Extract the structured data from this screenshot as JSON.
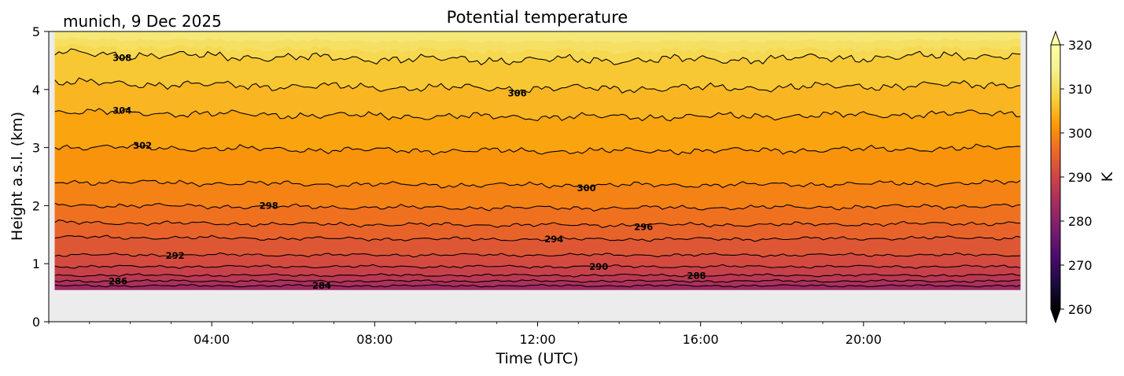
{
  "chart_data": {
    "type": "heatmap",
    "location_date": "munich, 9 Dec 2025",
    "title": "Potential temperature",
    "xlabel": "Time (UTC)",
    "ylabel": "Height a.s.l. (km)",
    "x_range_hours": [
      0,
      24
    ],
    "xticks": [
      {
        "hour": 4,
        "label": "04:00"
      },
      {
        "hour": 8,
        "label": "08:00"
      },
      {
        "hour": 12,
        "label": "12:00"
      },
      {
        "hour": 16,
        "label": "16:00"
      },
      {
        "hour": 20,
        "label": "20:00"
      }
    ],
    "ylim": [
      0,
      5
    ],
    "yticks": [
      0,
      1,
      2,
      3,
      4,
      5
    ],
    "yticklabels": [
      "0",
      "1",
      "2",
      "3",
      "4",
      "5"
    ],
    "data_range_hours": [
      0.15,
      23.85
    ],
    "data_bottom_km": 0.55,
    "colorbar": {
      "label": "K",
      "vmin": 260,
      "vmax": 320,
      "ticks": [
        "260",
        "270",
        "280",
        "290",
        "300",
        "310",
        "320"
      ],
      "colormap": "inferno",
      "extend": "both"
    },
    "missing_color": "#ececec",
    "contour_interval_K": 2,
    "contours": [
      {
        "level": 284,
        "height_km": 0.62,
        "label": "284",
        "label_hour": 6.7
      },
      {
        "level": 286,
        "height_km": 0.7,
        "label": "286",
        "label_hour": 1.7
      },
      {
        "level": 288,
        "height_km": 0.8,
        "label": "288",
        "label_hour": 15.9
      },
      {
        "level": 290,
        "height_km": 0.95,
        "label": "290",
        "label_hour": 13.5
      },
      {
        "level": 292,
        "height_km": 1.15,
        "label": "292",
        "label_hour": 3.1
      },
      {
        "level": 294,
        "height_km": 1.45,
        "label": "294",
        "label_hour": 12.4
      },
      {
        "level": 296,
        "height_km": 1.7,
        "label": "296",
        "label_hour": 14.6
      },
      {
        "level": 298,
        "height_km": 2.0,
        "label": "298",
        "label_hour": 5.4
      },
      {
        "level": 300,
        "height_km": 2.4,
        "label": "300",
        "label_hour": 13.2
      },
      {
        "level": 302,
        "height_km": 3.0,
        "label": "302",
        "label_hour": 2.3
      },
      {
        "level": 304,
        "height_km": 3.6,
        "label": "304",
        "label_hour": 1.8
      },
      {
        "level": 306,
        "height_km": 4.1,
        "label": "306",
        "label_hour": 11.5
      },
      {
        "level": 308,
        "height_km": 4.6,
        "label": "308",
        "label_hour": 1.8
      }
    ]
  }
}
